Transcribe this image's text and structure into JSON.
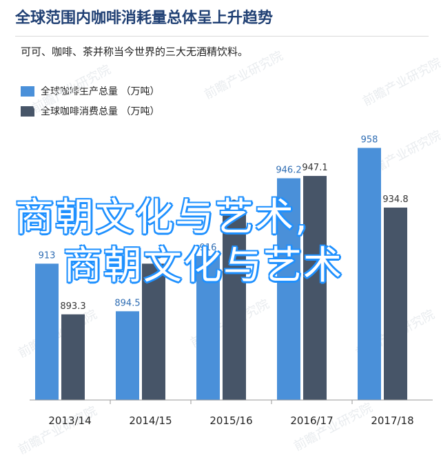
{
  "header": {
    "title": "全球范围内咖啡消耗量总体呈上升趋势",
    "subtitle": "可可、咖啡、茶并称当今世界的三大无酒精饮料。"
  },
  "watermark_text": "前瞻产业研究院",
  "overlay": {
    "line1": "商朝文化与艺术,",
    "line2": "商朝文化与艺术",
    "color": "#ffffff",
    "stroke": "#1e90ff"
  },
  "colors": {
    "production": "#4a90d9",
    "consumption": "#475568"
  },
  "chart_data": {
    "type": "bar",
    "categories": [
      "2013/14",
      "2014/15",
      "2015/16",
      "2016/17",
      "2017/18"
    ],
    "series": [
      {
        "name": "全球咖啡生产总量 （万吨）",
        "values": [
          913,
          894.5,
          916,
          946.2,
          958
        ],
        "labels": [
          "913",
          "894.5",
          "916",
          "946.2",
          "958"
        ]
      },
      {
        "name": "全球咖啡消费总量 （万吨）",
        "values": [
          893.3,
          913,
          933,
          947.1,
          934.8
        ],
        "labels": [
          "893.3",
          "913",
          "933",
          "947.1",
          "934.8"
        ]
      }
    ],
    "ylim": [
      860,
      960
    ],
    "legend": "top-left",
    "grid": false
  }
}
